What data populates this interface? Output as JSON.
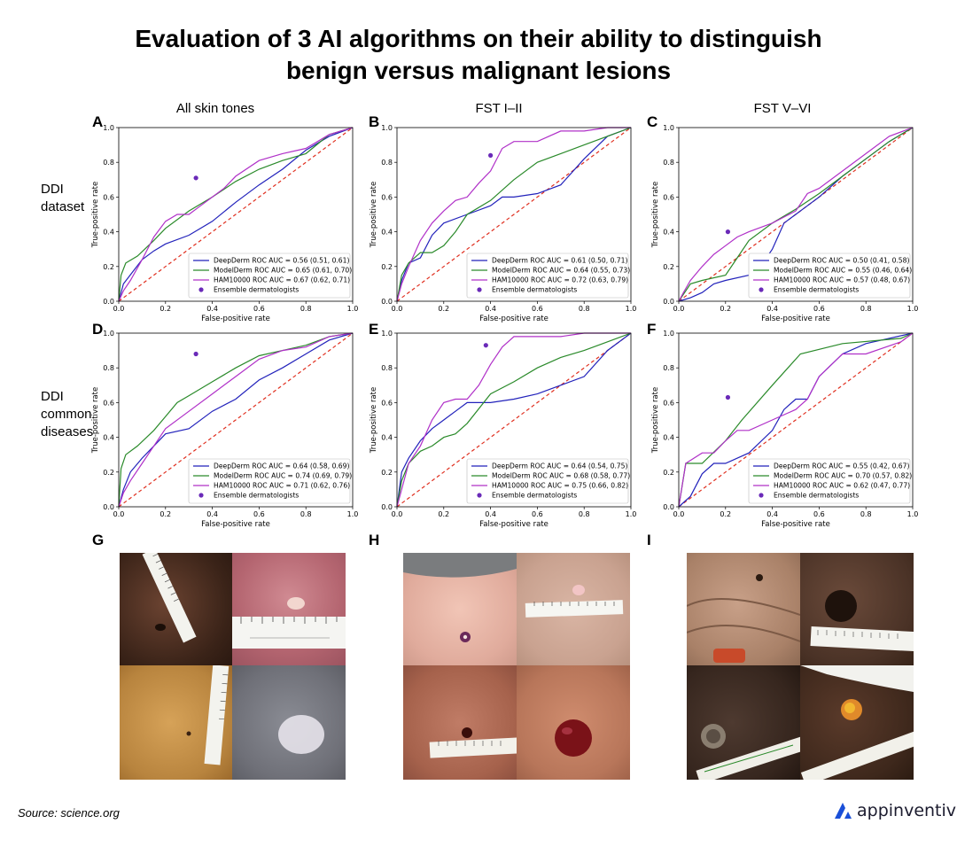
{
  "header": {
    "title_line1": "Evaluation of 3 AI algorithms on their ability to distinguish",
    "title_line2": "benign versus malignant lesions"
  },
  "columns": [
    "All skin tones",
    "FST I–II",
    "FST V–VI"
  ],
  "rows": [
    {
      "label_lines": [
        "DDI",
        "dataset"
      ]
    },
    {
      "label_lines": [
        "DDI",
        "common",
        "diseases"
      ]
    }
  ],
  "photo_panels": [
    "G",
    "H",
    "I"
  ],
  "footer": {
    "source": "Source: science.org",
    "brand": "appinventiv"
  },
  "colors": {
    "DeepDerm": "#2222bb",
    "ModelDerm": "#2a8a2a",
    "HAM10000": "#b030c8",
    "Ensemble": "#6a2ab8",
    "diagonal": "#e03020"
  },
  "chart_data": [
    {
      "panel": "A",
      "type": "line",
      "xlabel": "False-positive rate",
      "ylabel": "True-positive rate",
      "xlim": [
        0,
        1
      ],
      "ylim": [
        0,
        1
      ],
      "xticks": [
        0.0,
        0.2,
        0.4,
        0.6,
        0.8,
        1.0
      ],
      "yticks": [
        0.0,
        0.2,
        0.4,
        0.6,
        0.8,
        1.0
      ],
      "legend_position": "bottom-right",
      "grid": false,
      "series": [
        {
          "name": "DeepDerm ROC AUC = 0.56 (0.51, 0.61)",
          "color": "#2222bb",
          "x": [
            0,
            0.02,
            0.06,
            0.1,
            0.15,
            0.2,
            0.3,
            0.4,
            0.5,
            0.6,
            0.7,
            0.8,
            0.9,
            1.0
          ],
          "y": [
            0,
            0.1,
            0.17,
            0.24,
            0.29,
            0.33,
            0.38,
            0.46,
            0.57,
            0.67,
            0.76,
            0.87,
            0.95,
            1.0
          ]
        },
        {
          "name": "ModelDerm ROC AUC = 0.65 (0.61, 0.70)",
          "color": "#2a8a2a",
          "x": [
            0,
            0.01,
            0.03,
            0.08,
            0.15,
            0.2,
            0.3,
            0.4,
            0.5,
            0.6,
            0.7,
            0.8,
            0.9,
            1.0
          ],
          "y": [
            0,
            0.15,
            0.22,
            0.26,
            0.35,
            0.42,
            0.52,
            0.6,
            0.69,
            0.76,
            0.81,
            0.85,
            0.96,
            1.0
          ]
        },
        {
          "name": "HAM10000 ROC AUC = 0.67 (0.62, 0.71)",
          "color": "#b030c8",
          "x": [
            0,
            0.02,
            0.05,
            0.1,
            0.15,
            0.2,
            0.25,
            0.3,
            0.35,
            0.4,
            0.45,
            0.5,
            0.6,
            0.7,
            0.8,
            0.9,
            1.0
          ],
          "y": [
            0,
            0.06,
            0.12,
            0.24,
            0.37,
            0.46,
            0.5,
            0.5,
            0.55,
            0.6,
            0.65,
            0.72,
            0.81,
            0.85,
            0.88,
            0.96,
            1.0
          ]
        },
        {
          "name": "Ensemble dermatologists",
          "type": "scatter",
          "color": "#6a2ab8",
          "x": [
            0.33
          ],
          "y": [
            0.71
          ]
        }
      ]
    },
    {
      "panel": "B",
      "type": "line",
      "xlabel": "False-positive rate",
      "ylabel": "True-positive rate",
      "xlim": [
        0,
        1
      ],
      "ylim": [
        0,
        1
      ],
      "xticks": [
        0.0,
        0.2,
        0.4,
        0.6,
        0.8,
        1.0
      ],
      "yticks": [
        0.0,
        0.2,
        0.4,
        0.6,
        0.8,
        1.0
      ],
      "legend_position": "bottom-right",
      "grid": false,
      "series": [
        {
          "name": "DeepDerm ROC AUC = 0.61 (0.50, 0.71)",
          "color": "#2222bb",
          "x": [
            0,
            0.02,
            0.05,
            0.1,
            0.15,
            0.2,
            0.3,
            0.4,
            0.45,
            0.5,
            0.6,
            0.7,
            0.8,
            0.9,
            1.0
          ],
          "y": [
            0,
            0.12,
            0.22,
            0.25,
            0.38,
            0.45,
            0.5,
            0.55,
            0.6,
            0.6,
            0.62,
            0.67,
            0.82,
            0.95,
            1.0
          ]
        },
        {
          "name": "ModelDerm ROC AUC = 0.64 (0.55, 0.73)",
          "color": "#2a8a2a",
          "x": [
            0,
            0.02,
            0.05,
            0.1,
            0.15,
            0.2,
            0.25,
            0.3,
            0.4,
            0.5,
            0.6,
            0.7,
            0.8,
            0.9,
            1.0
          ],
          "y": [
            0,
            0.15,
            0.22,
            0.28,
            0.28,
            0.32,
            0.4,
            0.5,
            0.58,
            0.7,
            0.8,
            0.85,
            0.9,
            0.95,
            1.0
          ]
        },
        {
          "name": "HAM10000 ROC AUC = 0.72 (0.63, 0.79)",
          "color": "#b030c8",
          "x": [
            0,
            0.02,
            0.05,
            0.1,
            0.15,
            0.2,
            0.25,
            0.3,
            0.35,
            0.4,
            0.45,
            0.5,
            0.6,
            0.7,
            0.8,
            0.9,
            1.0
          ],
          "y": [
            0,
            0.1,
            0.2,
            0.35,
            0.45,
            0.52,
            0.58,
            0.6,
            0.68,
            0.75,
            0.88,
            0.92,
            0.92,
            0.98,
            0.98,
            1.0,
            1.0
          ]
        },
        {
          "name": "Ensemble dermatologists",
          "type": "scatter",
          "color": "#6a2ab8",
          "x": [
            0.4
          ],
          "y": [
            0.84
          ]
        }
      ]
    },
    {
      "panel": "C",
      "type": "line",
      "xlabel": "False-positive rate",
      "ylabel": "True-positive rate",
      "xlim": [
        0,
        1
      ],
      "ylim": [
        0,
        1
      ],
      "xticks": [
        0.0,
        0.2,
        0.4,
        0.6,
        0.8,
        1.0
      ],
      "yticks": [
        0.0,
        0.2,
        0.4,
        0.6,
        0.8,
        1.0
      ],
      "legend_position": "bottom-right",
      "grid": false,
      "series": [
        {
          "name": "DeepDerm ROC AUC = 0.50 (0.41, 0.58)",
          "color": "#2222bb",
          "x": [
            0,
            0.05,
            0.1,
            0.15,
            0.2,
            0.3,
            0.35,
            0.4,
            0.45,
            0.5,
            0.55,
            0.6,
            0.7,
            0.8,
            0.9,
            1.0
          ],
          "y": [
            0,
            0.02,
            0.05,
            0.1,
            0.12,
            0.15,
            0.2,
            0.3,
            0.45,
            0.5,
            0.55,
            0.6,
            0.72,
            0.82,
            0.92,
            1.0
          ]
        },
        {
          "name": "ModelDerm ROC AUC = 0.55 (0.46, 0.64)",
          "color": "#2a8a2a",
          "x": [
            0,
            0.05,
            0.1,
            0.2,
            0.25,
            0.3,
            0.4,
            0.5,
            0.6,
            0.7,
            0.8,
            0.9,
            1.0
          ],
          "y": [
            0,
            0.1,
            0.12,
            0.15,
            0.25,
            0.35,
            0.45,
            0.53,
            0.62,
            0.72,
            0.82,
            0.92,
            1.0
          ]
        },
        {
          "name": "HAM10000 ROC AUC = 0.57 (0.48, 0.67)",
          "color": "#b030c8",
          "x": [
            0,
            0.02,
            0.05,
            0.1,
            0.15,
            0.2,
            0.25,
            0.3,
            0.4,
            0.5,
            0.55,
            0.6,
            0.7,
            0.8,
            0.9,
            1.0
          ],
          "y": [
            0,
            0.05,
            0.12,
            0.2,
            0.27,
            0.32,
            0.37,
            0.4,
            0.45,
            0.52,
            0.62,
            0.65,
            0.75,
            0.85,
            0.95,
            1.0
          ]
        },
        {
          "name": "Ensemble dermatologists",
          "type": "scatter",
          "color": "#6a2ab8",
          "x": [
            0.21
          ],
          "y": [
            0.4
          ]
        }
      ]
    },
    {
      "panel": "D",
      "type": "line",
      "xlabel": "False-positive rate",
      "ylabel": "True-positive rate",
      "xlim": [
        0,
        1
      ],
      "ylim": [
        0,
        1
      ],
      "xticks": [
        0.0,
        0.2,
        0.4,
        0.6,
        0.8,
        1.0
      ],
      "yticks": [
        0.0,
        0.2,
        0.4,
        0.6,
        0.8,
        1.0
      ],
      "legend_position": "bottom-right",
      "grid": false,
      "series": [
        {
          "name": "DeepDerm ROC AUC = 0.64 (0.58, 0.69)",
          "color": "#2222bb",
          "x": [
            0,
            0.02,
            0.05,
            0.1,
            0.15,
            0.2,
            0.3,
            0.4,
            0.5,
            0.6,
            0.7,
            0.8,
            0.9,
            1.0
          ],
          "y": [
            0,
            0.1,
            0.2,
            0.28,
            0.35,
            0.42,
            0.45,
            0.55,
            0.62,
            0.73,
            0.8,
            0.88,
            0.96,
            1.0
          ]
        },
        {
          "name": "ModelDerm ROC AUC = 0.74 (0.69, 0.79)",
          "color": "#2a8a2a",
          "x": [
            0,
            0.01,
            0.03,
            0.08,
            0.15,
            0.2,
            0.25,
            0.3,
            0.4,
            0.5,
            0.6,
            0.7,
            0.8,
            0.9,
            1.0
          ],
          "y": [
            0,
            0.22,
            0.3,
            0.35,
            0.44,
            0.52,
            0.6,
            0.64,
            0.72,
            0.8,
            0.87,
            0.9,
            0.93,
            0.98,
            1.0
          ]
        },
        {
          "name": "HAM10000 ROC AUC = 0.71 (0.62, 0.76)",
          "color": "#b030c8",
          "x": [
            0,
            0.02,
            0.05,
            0.1,
            0.15,
            0.2,
            0.3,
            0.4,
            0.5,
            0.6,
            0.7,
            0.8,
            0.9,
            1.0
          ],
          "y": [
            0,
            0.08,
            0.15,
            0.25,
            0.35,
            0.45,
            0.55,
            0.65,
            0.75,
            0.85,
            0.9,
            0.92,
            0.98,
            1.0
          ]
        },
        {
          "name": "Ensemble dermatologists",
          "type": "scatter",
          "color": "#6a2ab8",
          "x": [
            0.33
          ],
          "y": [
            0.88
          ]
        }
      ]
    },
    {
      "panel": "E",
      "type": "line",
      "xlabel": "False-positive rate",
      "ylabel": "True-positive rate",
      "xlim": [
        0,
        1
      ],
      "ylim": [
        0,
        1
      ],
      "xticks": [
        0.0,
        0.2,
        0.4,
        0.6,
        0.8,
        1.0
      ],
      "yticks": [
        0.0,
        0.2,
        0.4,
        0.6,
        0.8,
        1.0
      ],
      "legend_position": "bottom-right",
      "grid": false,
      "series": [
        {
          "name": "DeepDerm ROC AUC = 0.64 (0.54, 0.75)",
          "color": "#2222bb",
          "x": [
            0,
            0.02,
            0.05,
            0.1,
            0.15,
            0.2,
            0.25,
            0.3,
            0.4,
            0.5,
            0.6,
            0.7,
            0.8,
            0.9,
            1.0
          ],
          "y": [
            0,
            0.2,
            0.28,
            0.38,
            0.45,
            0.5,
            0.55,
            0.6,
            0.6,
            0.62,
            0.65,
            0.7,
            0.75,
            0.9,
            1.0
          ]
        },
        {
          "name": "ModelDerm ROC AUC = 0.68 (0.58, 0.77)",
          "color": "#2a8a2a",
          "x": [
            0,
            0.02,
            0.05,
            0.1,
            0.15,
            0.2,
            0.25,
            0.3,
            0.4,
            0.5,
            0.6,
            0.7,
            0.8,
            0.9,
            1.0
          ],
          "y": [
            0,
            0.15,
            0.25,
            0.32,
            0.35,
            0.4,
            0.42,
            0.48,
            0.65,
            0.72,
            0.8,
            0.86,
            0.9,
            0.95,
            1.0
          ]
        },
        {
          "name": "HAM10000 ROC AUC = 0.75 (0.66, 0.82)",
          "color": "#b030c8",
          "x": [
            0,
            0.02,
            0.05,
            0.1,
            0.15,
            0.2,
            0.25,
            0.3,
            0.35,
            0.4,
            0.45,
            0.5,
            0.6,
            0.7,
            0.8,
            0.9,
            1.0
          ],
          "y": [
            0,
            0.1,
            0.25,
            0.35,
            0.5,
            0.6,
            0.62,
            0.62,
            0.7,
            0.82,
            0.92,
            0.98,
            0.98,
            0.98,
            1.0,
            1.0,
            1.0
          ]
        },
        {
          "name": "Ensemble dermatologists",
          "type": "scatter",
          "color": "#6a2ab8",
          "x": [
            0.38
          ],
          "y": [
            0.93
          ]
        }
      ]
    },
    {
      "panel": "F",
      "type": "line",
      "xlabel": "False-positive rate",
      "ylabel": "True-positive rate",
      "xlim": [
        0,
        1
      ],
      "ylim": [
        0,
        1
      ],
      "xticks": [
        0.0,
        0.2,
        0.4,
        0.6,
        0.8,
        1.0
      ],
      "yticks": [
        0.0,
        0.2,
        0.4,
        0.6,
        0.8,
        1.0
      ],
      "legend_position": "bottom-right",
      "grid": false,
      "series": [
        {
          "name": "DeepDerm ROC AUC = 0.55 (0.42, 0.67)",
          "color": "#2222bb",
          "x": [
            0,
            0.05,
            0.1,
            0.15,
            0.2,
            0.3,
            0.4,
            0.45,
            0.5,
            0.55,
            0.6,
            0.7,
            0.8,
            1.0
          ],
          "y": [
            0,
            0.06,
            0.19,
            0.25,
            0.25,
            0.31,
            0.44,
            0.56,
            0.62,
            0.62,
            0.75,
            0.88,
            0.94,
            1.0
          ]
        },
        {
          "name": "ModelDerm ROC AUC = 0.70 (0.57, 0.82)",
          "color": "#2a8a2a",
          "x": [
            0,
            0.03,
            0.1,
            0.2,
            0.27,
            0.4,
            0.52,
            0.7,
            0.95,
            1.0
          ],
          "y": [
            0,
            0.25,
            0.25,
            0.38,
            0.5,
            0.7,
            0.88,
            0.94,
            0.97,
            1.0
          ]
        },
        {
          "name": "HAM10000 ROC AUC = 0.62 (0.47, 0.77)",
          "color": "#b030c8",
          "x": [
            0,
            0.03,
            0.1,
            0.15,
            0.2,
            0.25,
            0.3,
            0.4,
            0.5,
            0.55,
            0.6,
            0.7,
            0.8,
            0.95,
            1.0
          ],
          "y": [
            0,
            0.25,
            0.31,
            0.31,
            0.38,
            0.44,
            0.44,
            0.5,
            0.56,
            0.62,
            0.75,
            0.88,
            0.88,
            0.95,
            1.0
          ]
        },
        {
          "name": "Ensemble dermatologists",
          "type": "scatter",
          "color": "#6a2ab8",
          "x": [
            0.21
          ],
          "y": [
            0.63
          ]
        }
      ]
    }
  ]
}
